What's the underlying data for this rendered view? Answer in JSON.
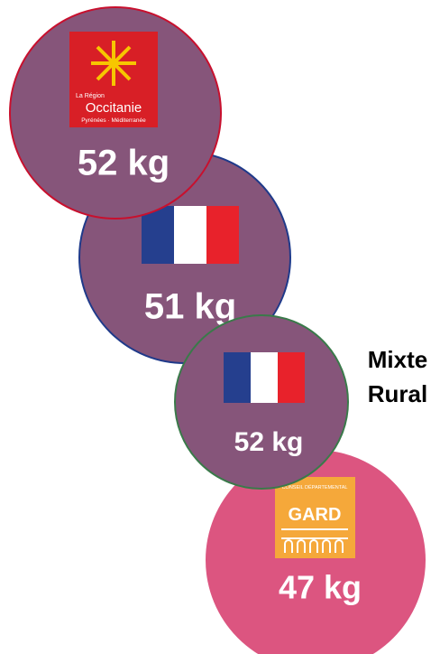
{
  "items": [
    {
      "weight": "52 kg",
      "logo": {
        "top": "La Région",
        "name": "Occitanie",
        "sub": "Pyrénées · Méditerranée"
      }
    },
    {
      "weight": "51 kg"
    },
    {
      "weight": "52 kg"
    },
    {
      "weight": "47 kg",
      "logo": {
        "top": "CONSEIL DÉPARTEMENTAL",
        "name": "GARD"
      }
    }
  ],
  "side_label": [
    "Mixte",
    "Rural"
  ]
}
